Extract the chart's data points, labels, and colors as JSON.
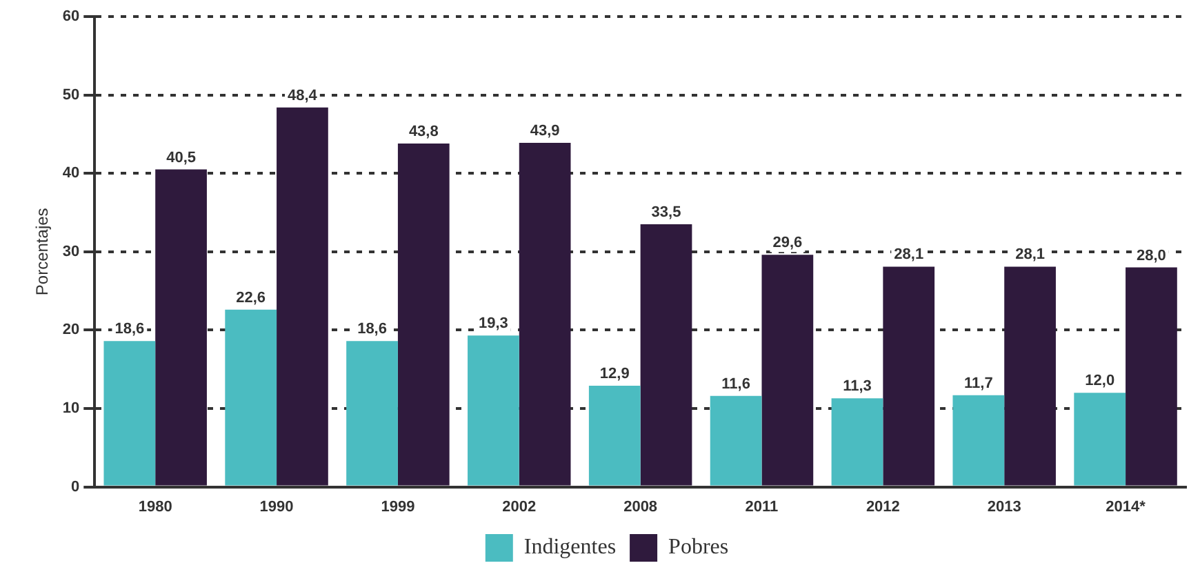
{
  "chart_data": {
    "type": "bar",
    "ylabel": "Porcentajes",
    "categories": [
      "1980",
      "1990",
      "1999",
      "2002",
      "2008",
      "2011",
      "2012",
      "2013",
      "2014*"
    ],
    "series": [
      {
        "name": "Indigentes",
        "color": "#4bbcc1",
        "values": [
          18.6,
          22.6,
          18.6,
          19.3,
          12.9,
          11.6,
          11.3,
          11.7,
          12.0
        ],
        "value_labels": [
          "18,6",
          "22,6",
          "18,6",
          "19,3",
          "12,9",
          "11,6",
          "11,3",
          "11,7",
          "12,0"
        ]
      },
      {
        "name": "Pobres",
        "color": "#2f1a3d",
        "values": [
          40.5,
          48.4,
          43.8,
          43.9,
          33.5,
          29.6,
          28.1,
          28.1,
          28.0
        ],
        "value_labels": [
          "40,5",
          "48,4",
          "43,8",
          "43,9",
          "33,5",
          "29,6",
          "28,1",
          "28,1",
          "28,0"
        ]
      }
    ],
    "ylim": [
      0,
      60
    ],
    "yticks": [
      0,
      10,
      20,
      30,
      40,
      50,
      60
    ],
    "grid": "y",
    "legend": "bottom"
  }
}
